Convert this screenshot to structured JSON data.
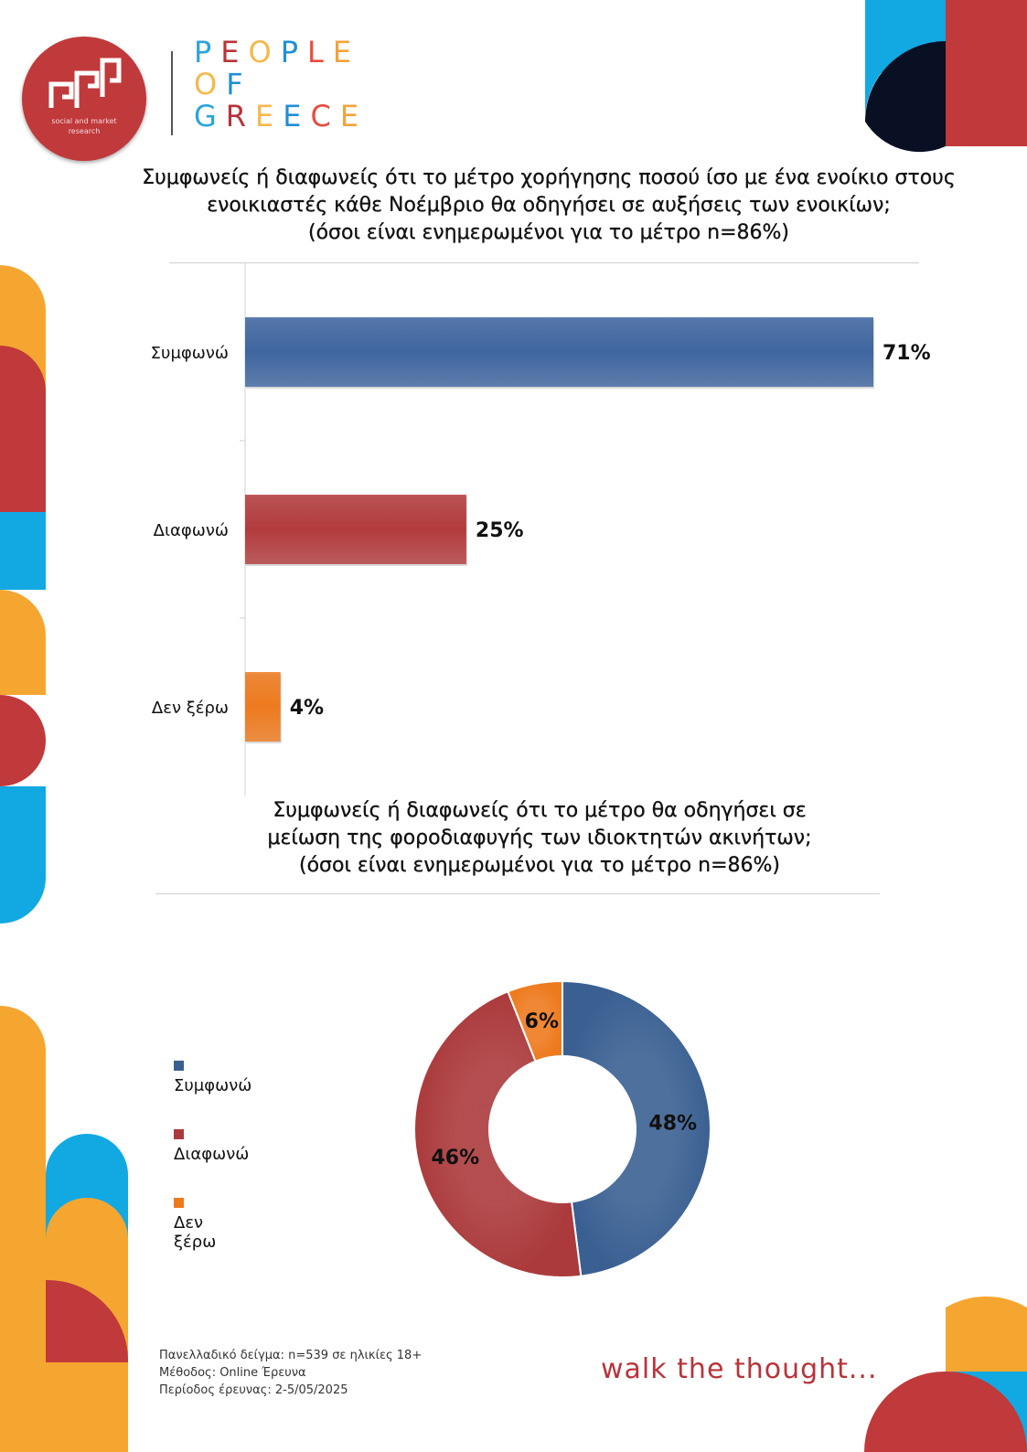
{
  "brand": {
    "logo_sub_line1": "social and market",
    "logo_sub_line2": "research",
    "people_letters": [
      "P",
      "E",
      "O",
      "P",
      "L",
      "E"
    ],
    "of_letters": [
      "O",
      "F"
    ],
    "greece_letters": [
      "G",
      "R",
      "E",
      "E",
      "C",
      "E"
    ],
    "letter_colors": [
      "#e94b3c",
      "#f2a33a",
      "#2ba3dd",
      "#b8333a",
      "#f6b84a",
      "#1f8fd6"
    ]
  },
  "chart1": {
    "title_line1": "Συμφωνείς ή διαφωνείς ότι το μέτρο χορήγησης ποσού ίσο με ένα ενοίκιο στους",
    "title_line2": "ενοικιαστές κάθε Νοέμβριο θα οδηγήσει σε αυξήσεις των ενοικίων;",
    "title_line3": "(όσοι είναι ενημερωμένοι για το μέτρο n=86%)"
  },
  "chart2": {
    "title_line1": "Συμφωνείς ή διαφωνείς ότι το μέτρο θα οδηγήσει σε",
    "title_line2": "μείωση της φοροδιαφυγής των ιδιοκτητών ακινήτων;",
    "title_line3": "(όσοι είναι ενημερωμένοι για το μέτρο n=86%)"
  },
  "chart_data": [
    {
      "type": "bar",
      "orientation": "horizontal",
      "categories": [
        "Συμφωνώ",
        "Διαφωνώ",
        "Δεν ξέρω"
      ],
      "values": [
        71,
        25,
        4
      ],
      "value_labels": [
        "71%",
        "25%",
        "4%"
      ],
      "colors": [
        "#3f66a0",
        "#b33b3d",
        "#ee7a1e"
      ],
      "xlim": [
        0,
        100
      ],
      "grid": false
    },
    {
      "type": "pie",
      "donut": true,
      "categories": [
        "Συμφωνώ",
        "Διαφωνώ",
        "Δεν ξέρω"
      ],
      "values": [
        48,
        46,
        6
      ],
      "value_labels": [
        "48%",
        "46%",
        "6%"
      ],
      "colors": [
        "#3a6092",
        "#ab3a3c",
        "#ee7a1e"
      ],
      "legend": "left"
    }
  ],
  "footer": {
    "line1": "Πανελλαδικό δείγμα: n=539 σε ηλικίες 18+",
    "line2": "Μέθοδος: Online Έρευνα",
    "line3": "Περίοδος έρευνας: 2-5/05/2025"
  },
  "tagline": "walk the thought..."
}
